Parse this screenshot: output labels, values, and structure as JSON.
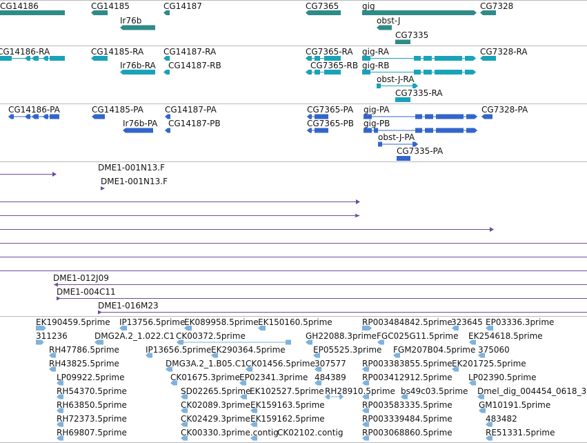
{
  "colors": {
    "gene": "#2e8b87",
    "transcript_ra": "#1aa3b8",
    "transcript_pa": "#3366cc",
    "clone_line": "#6a4c9c",
    "est": "#7fb2dc",
    "separator": "#b8b8b8"
  },
  "tracks": {
    "genes": [
      {
        "label": "CG14186"
      },
      {
        "label": "CG14185"
      },
      {
        "label": "CG14187"
      },
      {
        "label": "Ir76b"
      },
      {
        "label": "CG7365"
      },
      {
        "label": "gig"
      },
      {
        "label": "CG7328"
      },
      {
        "label": "obst-J"
      },
      {
        "label": "CG7335"
      }
    ],
    "transcripts_ra": [
      {
        "label": "CG14186-RA"
      },
      {
        "label": "CG14185-RA"
      },
      {
        "label": "CG14187-RA"
      },
      {
        "label": "Ir76b-RA"
      },
      {
        "label": "CG14187-RB"
      },
      {
        "label": "CG7365-RA"
      },
      {
        "label": "CG7365-RB"
      },
      {
        "label": "gig-RA"
      },
      {
        "label": "gig-RB"
      },
      {
        "label": "CG7328-RA"
      },
      {
        "label": "obst-J-RA"
      },
      {
        "label": "CG7335-RA"
      }
    ],
    "transcripts_pa": [
      {
        "label": "CG14186-PA"
      },
      {
        "label": "CG14185-PA"
      },
      {
        "label": "CG14187-PA"
      },
      {
        "label": "Ir76b-PA"
      },
      {
        "label": "CG14187-PB"
      },
      {
        "label": "CG7365-PA"
      },
      {
        "label": "CG7365-PB"
      },
      {
        "label": "gig-PA"
      },
      {
        "label": "gig-PB"
      },
      {
        "label": "CG7328-PA"
      },
      {
        "label": "obst-J-PA"
      },
      {
        "label": "CG7335-PA"
      }
    ],
    "clones": [
      {
        "label": "DME1-001N13.F"
      },
      {
        "label": "DME1-001N13.F"
      },
      {
        "label": "DME1-012J09"
      },
      {
        "label": "DME1-004C11"
      },
      {
        "label": "DME1-016M23"
      }
    ],
    "ests": [
      "EK190459.5prime",
      "IP13756.5prime",
      "EK089958.5prime",
      "EK150160.5prime",
      "RP003484842.5prime",
      "323645",
      "EP03336.3prime",
      "311236",
      "DMG2A.2_1.022.C1",
      "CK00372.5prime",
      "GH22088.3prime",
      "FGC025G11.5prime",
      "EK254618.5prime",
      "RH47786.5prime",
      "IP13656.5prime",
      "EK290364.5prime",
      "EP05525.3prime",
      "FGM207B04.5prime",
      "375060",
      "RH43825.5prime",
      "DMG3A.2_1.B05.C1",
      "CK01456.5prime",
      "307577",
      "RP003383855.5prime",
      "EK201725.5prime",
      "LP09922.5prime",
      "CK01675.3prime",
      "EP02341.3prime",
      "484389",
      "RP003412912.5prime",
      "LP02390.5prime",
      "RH54370.5prime",
      "SD02265.5prime",
      "EK102527.5prime",
      "RH28910.5prime",
      "bs49c03.5prime",
      "Dmel_dig_004454_0618_3",
      "RH63850.5prime",
      "CK02089.3prime",
      "EK159163.5prime",
      "RP003583335.5prime",
      "GM10191.5prime",
      "RH72373.5prime",
      "CK02429.3prime",
      "EK159162.5prime",
      "RP003339484.5prime",
      "483482",
      "RH69807.5prime",
      "CK00330.3prime.contig",
      "CK02102.contig",
      "RP003068860.5prime",
      "RE51331.5prime"
    ]
  }
}
